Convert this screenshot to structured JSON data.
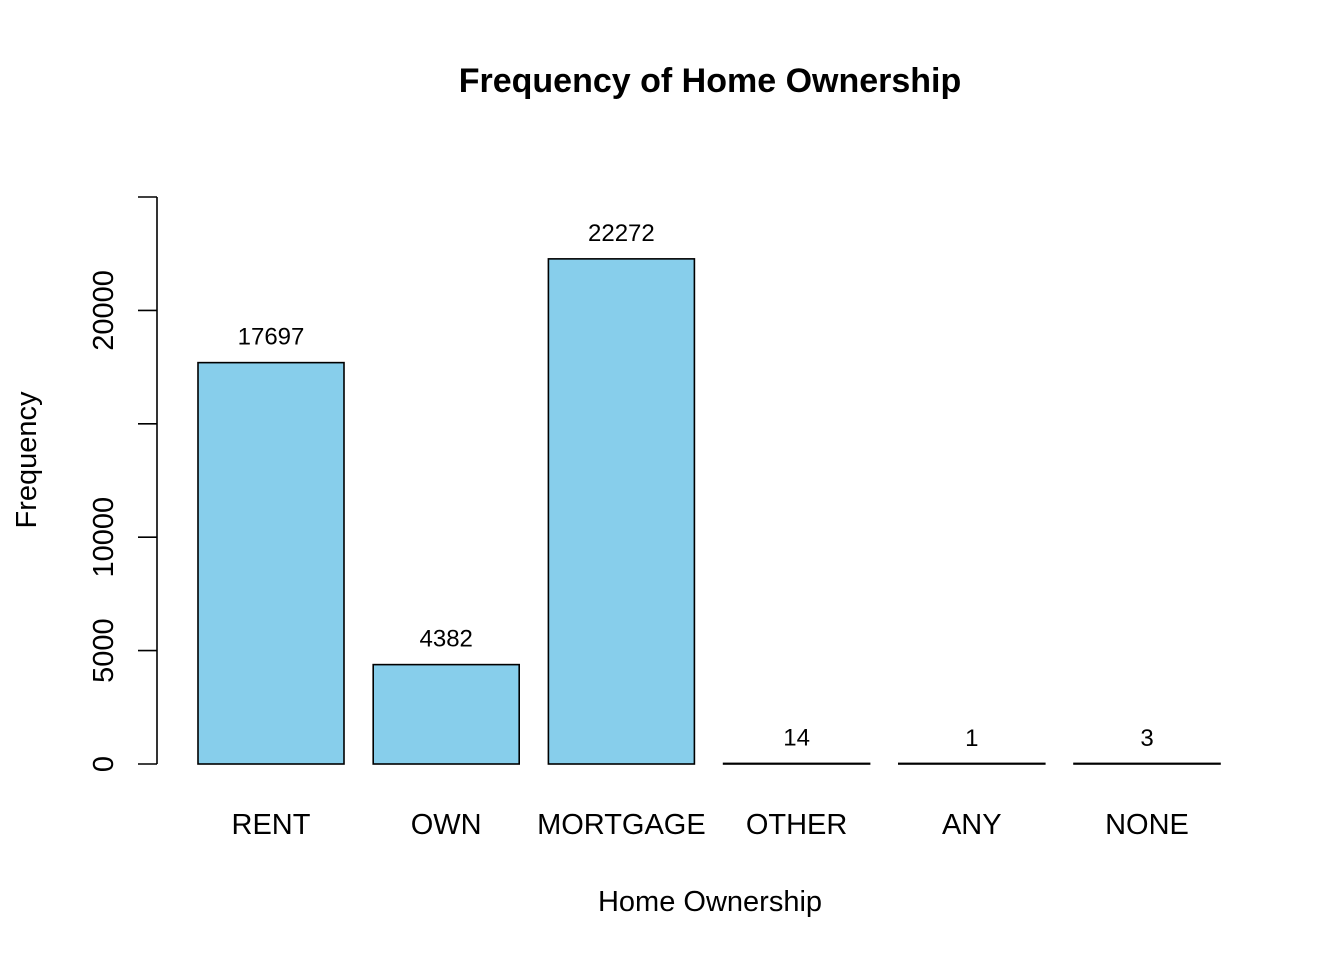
{
  "chart_data": {
    "type": "bar",
    "title": "Frequency of Home Ownership",
    "xlabel": "Home Ownership",
    "ylabel": "Frequency",
    "categories": [
      "RENT",
      "OWN",
      "MORTGAGE",
      "OTHER",
      "ANY",
      "NONE"
    ],
    "values": [
      17697,
      4382,
      22272,
      14,
      1,
      3
    ],
    "data_labels": [
      "17697",
      "4382",
      "22272",
      "14",
      "1",
      "3"
    ],
    "y_ticks": [
      0,
      5000,
      10000,
      15000,
      20000,
      25000
    ],
    "y_tick_labels": [
      "0",
      "5000",
      "10000",
      "",
      "20000",
      ""
    ],
    "ylim": [
      0,
      25000
    ],
    "grid": false,
    "legend": "none",
    "bar_color": "#87CEEB",
    "bar_border_color": "#000000"
  }
}
